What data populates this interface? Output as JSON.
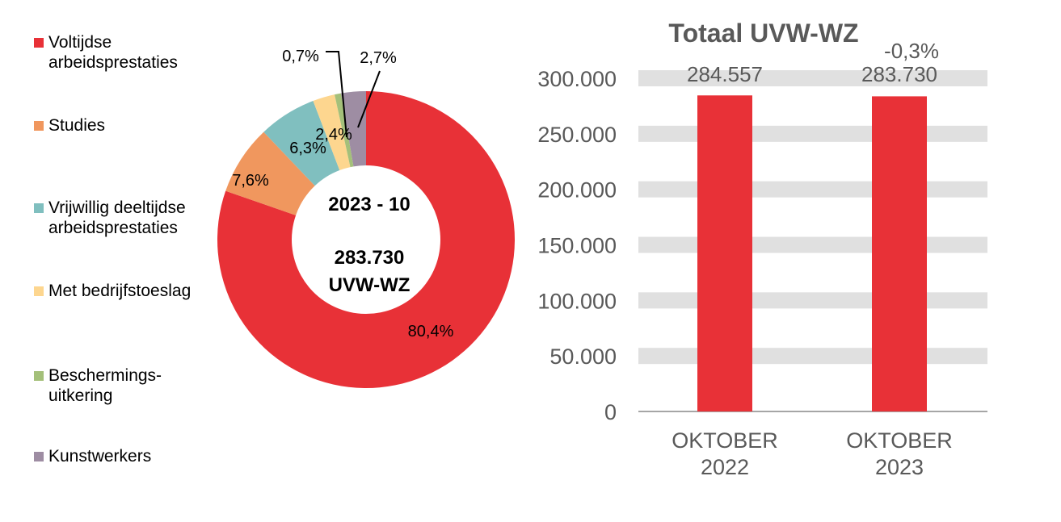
{
  "chart_data": [
    {
      "type": "pie",
      "donut": true,
      "center_label": {
        "period": "2023 - 10",
        "total": "283.730",
        "unit": "UVW-WZ"
      },
      "slices": [
        {
          "name": "Voltijdse arbeidsprestaties",
          "label_lines": [
            "Voltijdse",
            "arbeidsprestaties"
          ],
          "value": 80.4,
          "label": "80,4%",
          "color": "#E83137"
        },
        {
          "name": "Studies",
          "label_lines": [
            "Studies"
          ],
          "value": 7.6,
          "label": "7,6%",
          "color": "#F0975E"
        },
        {
          "name": "Vrijwillig deeltijdse arbeidsprestaties",
          "label_lines": [
            "Vrijwillig deeltijdse",
            "arbeidsprestaties"
          ],
          "value": 6.3,
          "label": "6,3%",
          "color": "#80BFBF"
        },
        {
          "name": "Met bedrijfstoeslag",
          "label_lines": [
            "Met bedrijfstoeslag"
          ],
          "value": 2.4,
          "label": "2,4%",
          "color": "#FDD68F"
        },
        {
          "name": "Beschermings-uitkering",
          "label_lines": [
            "Beschermings-",
            "uitkering"
          ],
          "value": 0.7,
          "label": "0,7%",
          "color": "#A4C07A"
        },
        {
          "name": "Kunstwerkers",
          "label_lines": [
            "Kunstwerkers"
          ],
          "value": 2.7,
          "label": "2,7%",
          "color": "#9E8DA3"
        }
      ],
      "legend": "left"
    },
    {
      "type": "bar",
      "title": "Totaal UVW-WZ",
      "categories": [
        [
          "OKTOBER",
          "2022"
        ],
        [
          "OKTOBER",
          "2023"
        ]
      ],
      "values": [
        284557,
        283730
      ],
      "data_labels": [
        "284.557",
        "283.730"
      ],
      "change_label": "-0,3%",
      "yticks": [
        "0",
        "50.000",
        "100.000",
        "150.000",
        "200.000",
        "250.000",
        "300.000"
      ],
      "ylim": [
        0,
        300000
      ],
      "grid": true,
      "bar_color": "#E83137",
      "grid_color": "#E0E0E0"
    }
  ]
}
